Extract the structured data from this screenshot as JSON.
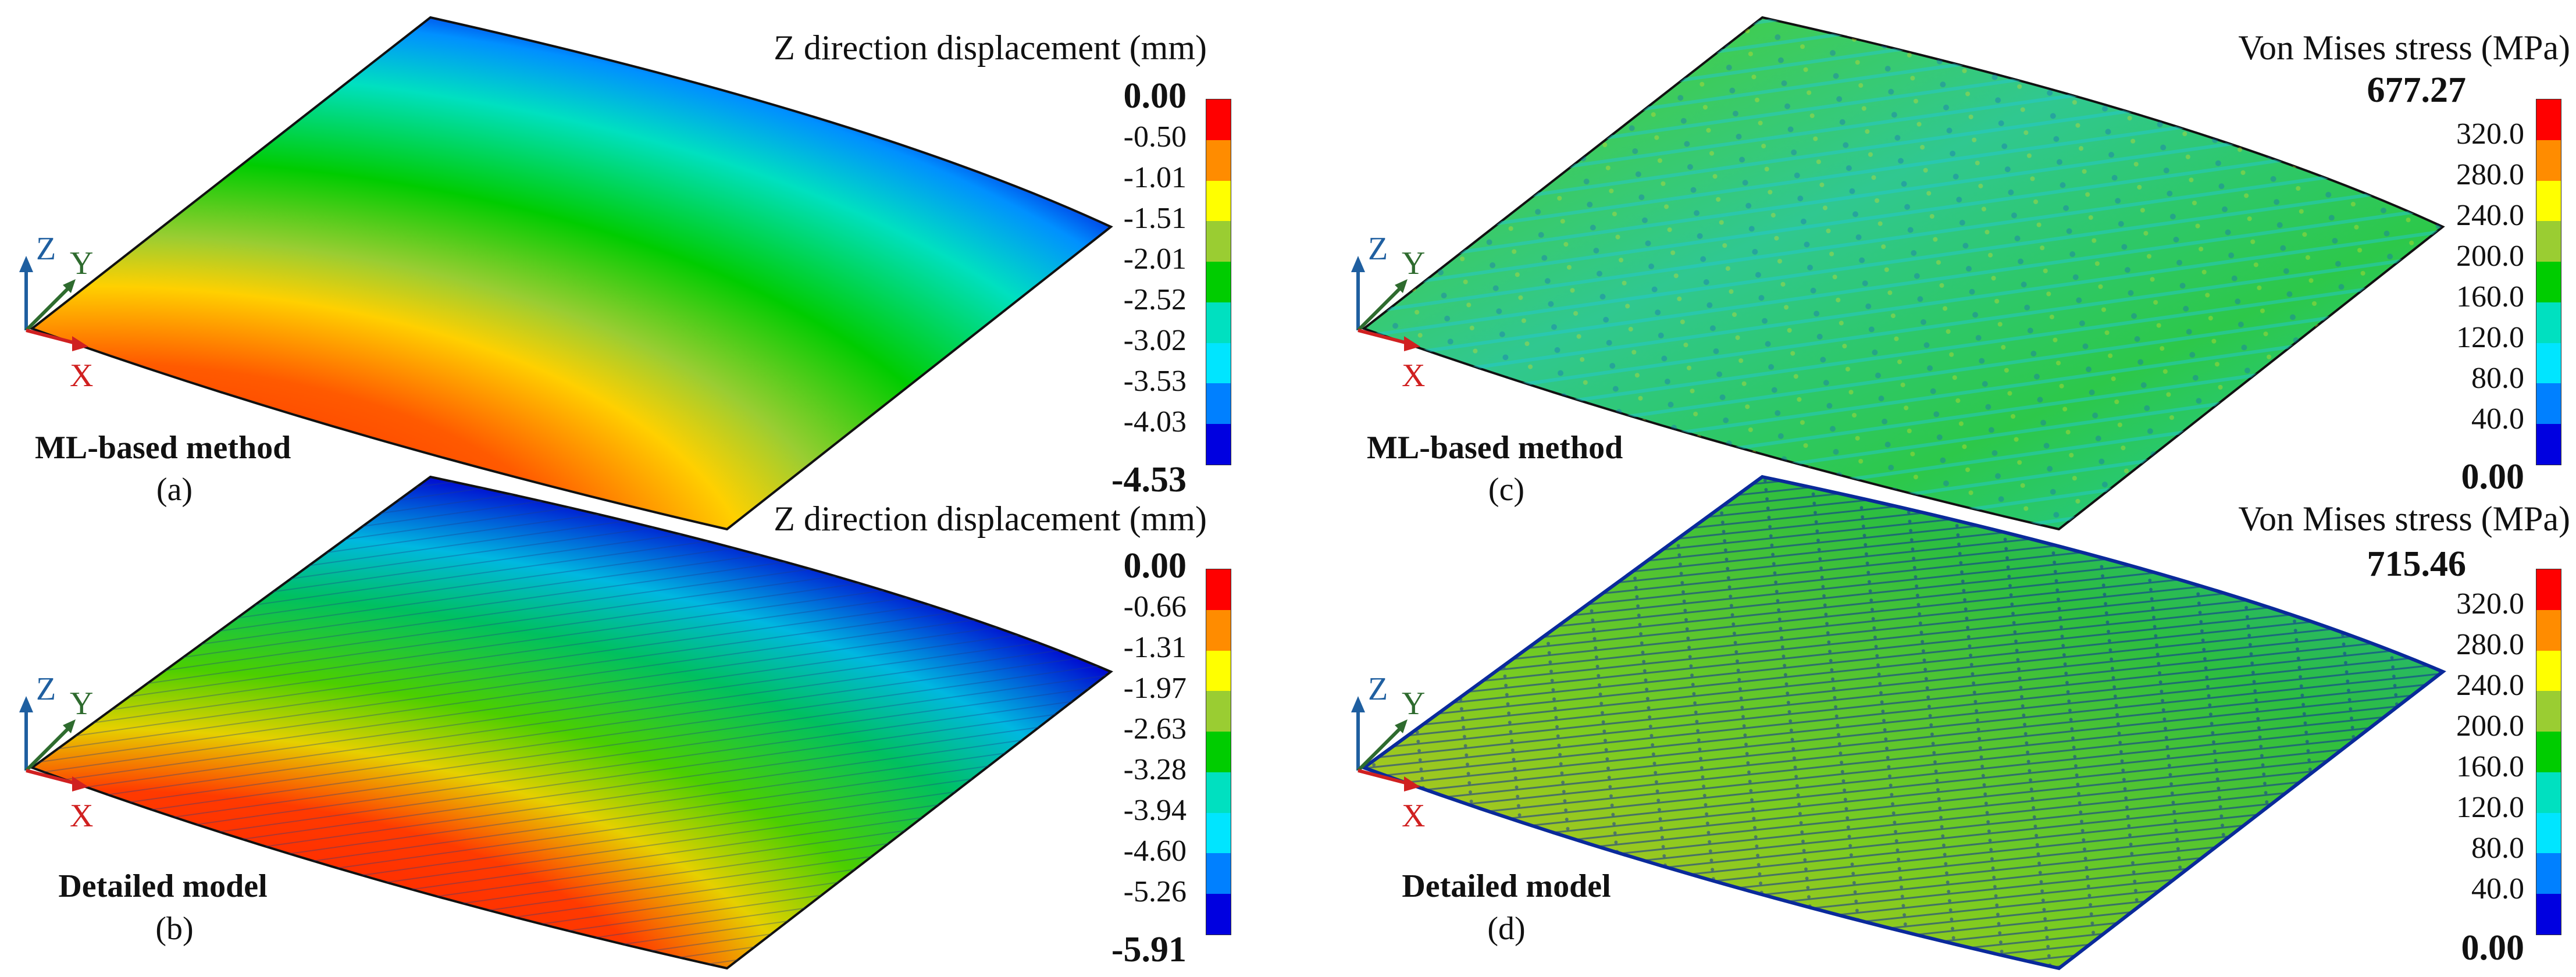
{
  "panels": {
    "a": {
      "label": "(a)",
      "method": "ML-based method",
      "colorbar": {
        "title": "Z direction displacement (mm)",
        "top": "0.00",
        "bottom": "-4.53",
        "ticks": [
          "-0.50",
          "-1.01",
          "-1.51",
          "-2.01",
          "-2.52",
          "-3.02",
          "-3.53",
          "-4.03"
        ]
      }
    },
    "b": {
      "label": "(b)",
      "method": "Detailed model",
      "colorbar": {
        "title": "Z direction displacement (mm)",
        "top": "0.00",
        "bottom": "-5.91",
        "ticks": [
          "-0.66",
          "-1.31",
          "-1.97",
          "-2.63",
          "-3.28",
          "-3.94",
          "-4.60",
          "-5.26"
        ]
      }
    },
    "c": {
      "label": "(c)",
      "method": "ML-based method",
      "colorbar": {
        "title": "Von Mises stress (MPa)",
        "top": "677.27",
        "bottom": "0.00",
        "ticks": [
          "320.0",
          "280.0",
          "240.0",
          "200.0",
          "160.0",
          "120.0",
          "80.0",
          "40.0"
        ]
      }
    },
    "d": {
      "label": "(d)",
      "method": "Detailed model",
      "colorbar": {
        "title": "Von Mises stress (MPa)",
        "top": "715.46",
        "bottom": "0.00",
        "ticks": [
          "320.0",
          "280.0",
          "240.0",
          "200.0",
          "160.0",
          "120.0",
          "80.0",
          "40.0"
        ]
      }
    }
  },
  "axes": {
    "z": "Z",
    "y": "Y",
    "x": "X"
  },
  "colors": {
    "scale": [
      "#ff0000",
      "#ff8c00",
      "#ffff00",
      "#9acd32",
      "#00cc00",
      "#00e0c0",
      "#00e5ff",
      "#0080ff",
      "#0000e0"
    ],
    "axis_z": "#1f5fa0",
    "axis_y": "#2e6b2e",
    "axis_x": "#d02020"
  }
}
